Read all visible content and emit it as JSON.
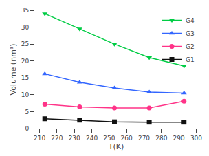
{
  "chart_data": {
    "type": "line",
    "x": [
      213,
      233,
      253,
      273,
      293
    ],
    "series": [
      {
        "name": "G4",
        "color": "#00cc44",
        "marker": "triangle-down",
        "values": [
          34.0,
          29.5,
          25.0,
          21.0,
          18.5
        ]
      },
      {
        "name": "G3",
        "color": "#3366ff",
        "marker": "triangle-up",
        "values": [
          16.2,
          13.7,
          12.0,
          10.8,
          10.5
        ]
      },
      {
        "name": "G2",
        "color": "#ff3388",
        "marker": "circle",
        "values": [
          7.2,
          6.4,
          6.1,
          6.1,
          8.1
        ]
      },
      {
        "name": "G1",
        "color": "#111111",
        "marker": "square",
        "values": [
          2.9,
          2.5,
          2.0,
          1.9,
          1.9
        ]
      }
    ],
    "xlabel": "T(K)",
    "ylabel": "Volume (nm³)",
    "xlim": [
      207,
      301
    ],
    "ylim": [
      0,
      35
    ],
    "xticks": [
      210,
      220,
      230,
      240,
      250,
      260,
      270,
      280,
      290,
      300
    ],
    "yticks": [
      0,
      5,
      10,
      15,
      20,
      25,
      30,
      35
    ],
    "grid": false,
    "legend": "upper right"
  }
}
